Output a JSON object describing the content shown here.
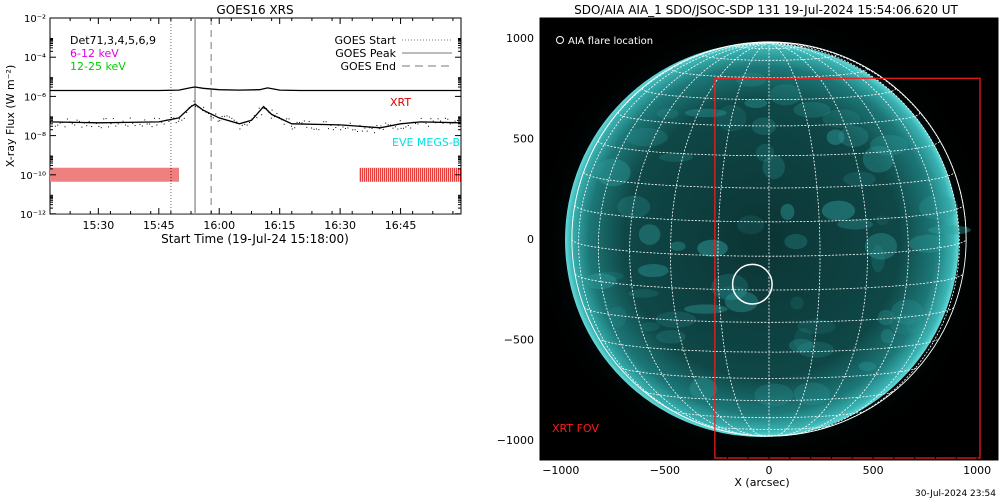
{
  "left_chart": {
    "title": "GOES16 XRS",
    "ylabel": "X-ray Flux (W m⁻²)",
    "xlabel": "Start Time (19-Jul-24 15:18:00)",
    "legend_left": [
      {
        "label": "Det71,3,4,5,6,9",
        "color": "#000000"
      },
      {
        "label": "6-12 keV",
        "color": "#e000e0"
      },
      {
        "label": "12-25 keV",
        "color": "#00cc00"
      }
    ],
    "legend_right": [
      {
        "label": "GOES Start",
        "style": "dotted"
      },
      {
        "label": "GOES Peak",
        "style": "solid"
      },
      {
        "label": "GOES End",
        "style": "dashed"
      }
    ],
    "annotations": [
      {
        "label": "XRT",
        "color": "#dd0000"
      },
      {
        "label": "EVE MEGS-B",
        "color": "#00e0e0"
      }
    ]
  },
  "right_image": {
    "title": "SDO/AIA AIA_1 SDO/JSOC-SDP 131 19-Jul-2024 15:54:06.620 UT",
    "legend": "AIA flare location",
    "fov_label": "XRT FOV",
    "xlabel": "X (arcsec)",
    "xticks": [
      "−1000",
      "−500",
      "0",
      "500",
      "1000"
    ],
    "yticks": [
      "1000",
      "500",
      "0",
      "−500",
      "−1000"
    ],
    "timestamp": "30-Jul-2024 23:54"
  },
  "chart_data": [
    {
      "type": "line",
      "title": "GOES16 XRS",
      "xlabel": "Start Time (19-Jul-24 15:18:00)",
      "ylabel": "X-ray Flux (W m⁻²)",
      "yscale": "log",
      "ylim": [
        1e-12,
        0.01
      ],
      "xlim": [
        "15:18",
        "17:00"
      ],
      "xticks": [
        "15:30",
        "15:45",
        "16:00",
        "16:15",
        "16:30",
        "16:45"
      ],
      "yticks": [
        "10⁻¹²",
        "10⁻¹⁰",
        "10⁻⁸",
        "10⁻⁶",
        "10⁻⁴",
        "10⁻²"
      ],
      "vlines": [
        {
          "name": "GOES Start",
          "x": "15:48",
          "style": "dotted"
        },
        {
          "name": "GOES Peak",
          "x": "15:54",
          "style": "solid"
        },
        {
          "name": "GOES End",
          "x": "15:58",
          "style": "dashed"
        }
      ],
      "series": [
        {
          "color": "#000000",
          "x": [
            "15:18",
            "15:30",
            "15:45",
            "15:50",
            "15:53",
            "15:54",
            "15:56",
            "16:00",
            "16:05",
            "16:10",
            "16:12",
            "16:15",
            "16:20",
            "16:30",
            "16:40",
            "16:45",
            "16:50",
            "17:00"
          ],
          "y": [
            2e-06,
            2e-06,
            2e-06,
            2.1e-06,
            2.8e-06,
            3e-06,
            2.6e-06,
            2.2e-06,
            2.1e-06,
            2.2e-06,
            2.7e-06,
            2.1e-06,
            2e-06,
            2e-06,
            2e-06,
            2e-06,
            2e-06,
            2e-06
          ]
        },
        {
          "color": "#000000",
          "x": [
            "15:18",
            "15:30",
            "15:45",
            "15:50",
            "15:53",
            "15:54",
            "15:56",
            "16:00",
            "16:05",
            "16:08",
            "16:11",
            "16:13",
            "16:18",
            "16:30",
            "16:40",
            "16:45",
            "16:50",
            "17:00"
          ],
          "y": [
            5e-08,
            4.5e-08,
            5e-08,
            8e-08,
            3e-07,
            4e-07,
            2e-07,
            8e-08,
            4e-08,
            6e-08,
            3e-07,
            1.2e-07,
            4e-08,
            3.5e-08,
            2.5e-08,
            4e-08,
            5e-08,
            4.5e-08
          ]
        },
        {
          "name": "XRT",
          "type": "coverage",
          "color": "#dd0000",
          "intervals": [
            [
              "15:18",
              "15:50"
            ],
            [
              "16:35",
              "17:00"
            ]
          ],
          "y": 1e-10
        },
        {
          "name": "EVE MEGS-B",
          "color": "#00e0e0",
          "x": [
            "15:18",
            "17:00"
          ],
          "y": [
            1e-12,
            1e-12
          ]
        }
      ]
    },
    {
      "type": "image",
      "title": "SDO/AIA AIA_1 SDO/JSOC-SDP 131 19-Jul-2024 15:54:06.620 UT",
      "xlabel": "X (arcsec)",
      "xlim": [
        -1100,
        1100
      ],
      "ylim": [
        -1100,
        1100
      ],
      "xticks": [
        -1000,
        -500,
        0,
        500,
        1000
      ],
      "yticks": [
        -1000,
        -500,
        0,
        500,
        1000
      ],
      "solar_radius_arcsec": 947,
      "flare_location": {
        "x": -80,
        "y": -225,
        "radius": 95
      },
      "xrt_fov": {
        "x0": -260,
        "x1": 1100,
        "y0": -1100,
        "y1": 800
      }
    }
  ]
}
